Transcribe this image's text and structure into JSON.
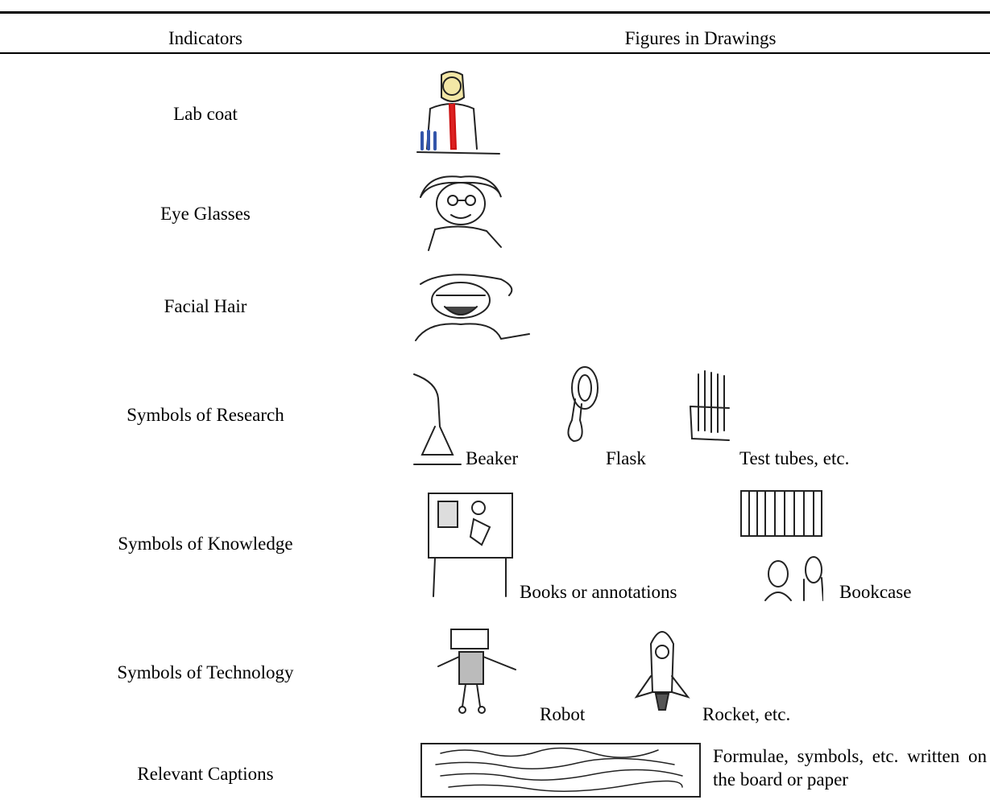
{
  "table": {
    "header": [
      "Indicators",
      "Figures in Drawings"
    ],
    "rows": [
      {
        "indicator": "Lab coat",
        "captions": []
      },
      {
        "indicator": "Eye Glasses",
        "captions": []
      },
      {
        "indicator": "Facial Hair",
        "captions": []
      },
      {
        "indicator": "Symbols of Research",
        "captions": [
          "Beaker",
          "Flask",
          "Test tubes, etc."
        ]
      },
      {
        "indicator": "Symbols of Knowledge",
        "captions": [
          "Books or annotations",
          "Bookcase"
        ]
      },
      {
        "indicator": "Symbols of Technology",
        "captions": [
          "Robot",
          "Rocket, etc."
        ]
      },
      {
        "indicator": "Relevant Captions",
        "captions": [
          "Formulae, symbols, etc. written on the board or paper"
        ]
      }
    ]
  }
}
